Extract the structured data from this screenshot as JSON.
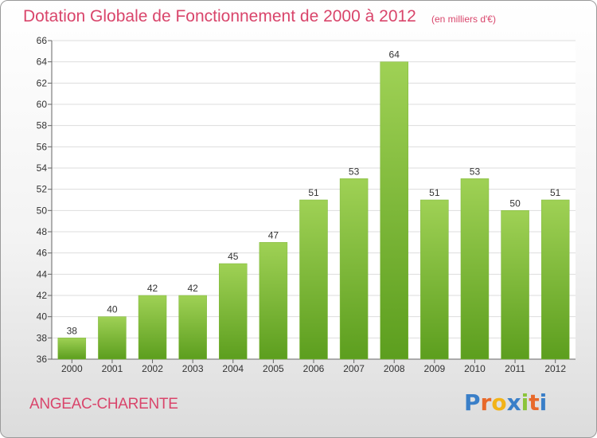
{
  "header": {
    "title": "Dotation Globale de Fonctionnement de 2000 à 2012",
    "unit": "(en milliers d'€)"
  },
  "footer": {
    "commune": "ANGEAC-CHARENTE",
    "logo": "Proxiti"
  },
  "colors": {
    "title": "#d9456b",
    "bar_top": "#9fd155",
    "bar_bottom": "#5c9e1e",
    "grid": "#dddddd"
  },
  "chart_data": {
    "type": "bar",
    "title": "Dotation Globale de Fonctionnement de 2000 à 2012",
    "subtitle": "(en milliers d'€)",
    "categories": [
      "2000",
      "2001",
      "2002",
      "2003",
      "2004",
      "2005",
      "2006",
      "2007",
      "2008",
      "2009",
      "2010",
      "2011",
      "2012"
    ],
    "values": [
      38,
      40,
      42,
      42,
      45,
      47,
      51,
      53,
      64,
      51,
      53,
      50,
      51
    ],
    "ylim": [
      36,
      66
    ],
    "yticks": [
      36,
      38,
      40,
      42,
      44,
      46,
      48,
      50,
      52,
      54,
      56,
      58,
      60,
      62,
      64,
      66
    ],
    "grid": true,
    "legend": "none"
  }
}
